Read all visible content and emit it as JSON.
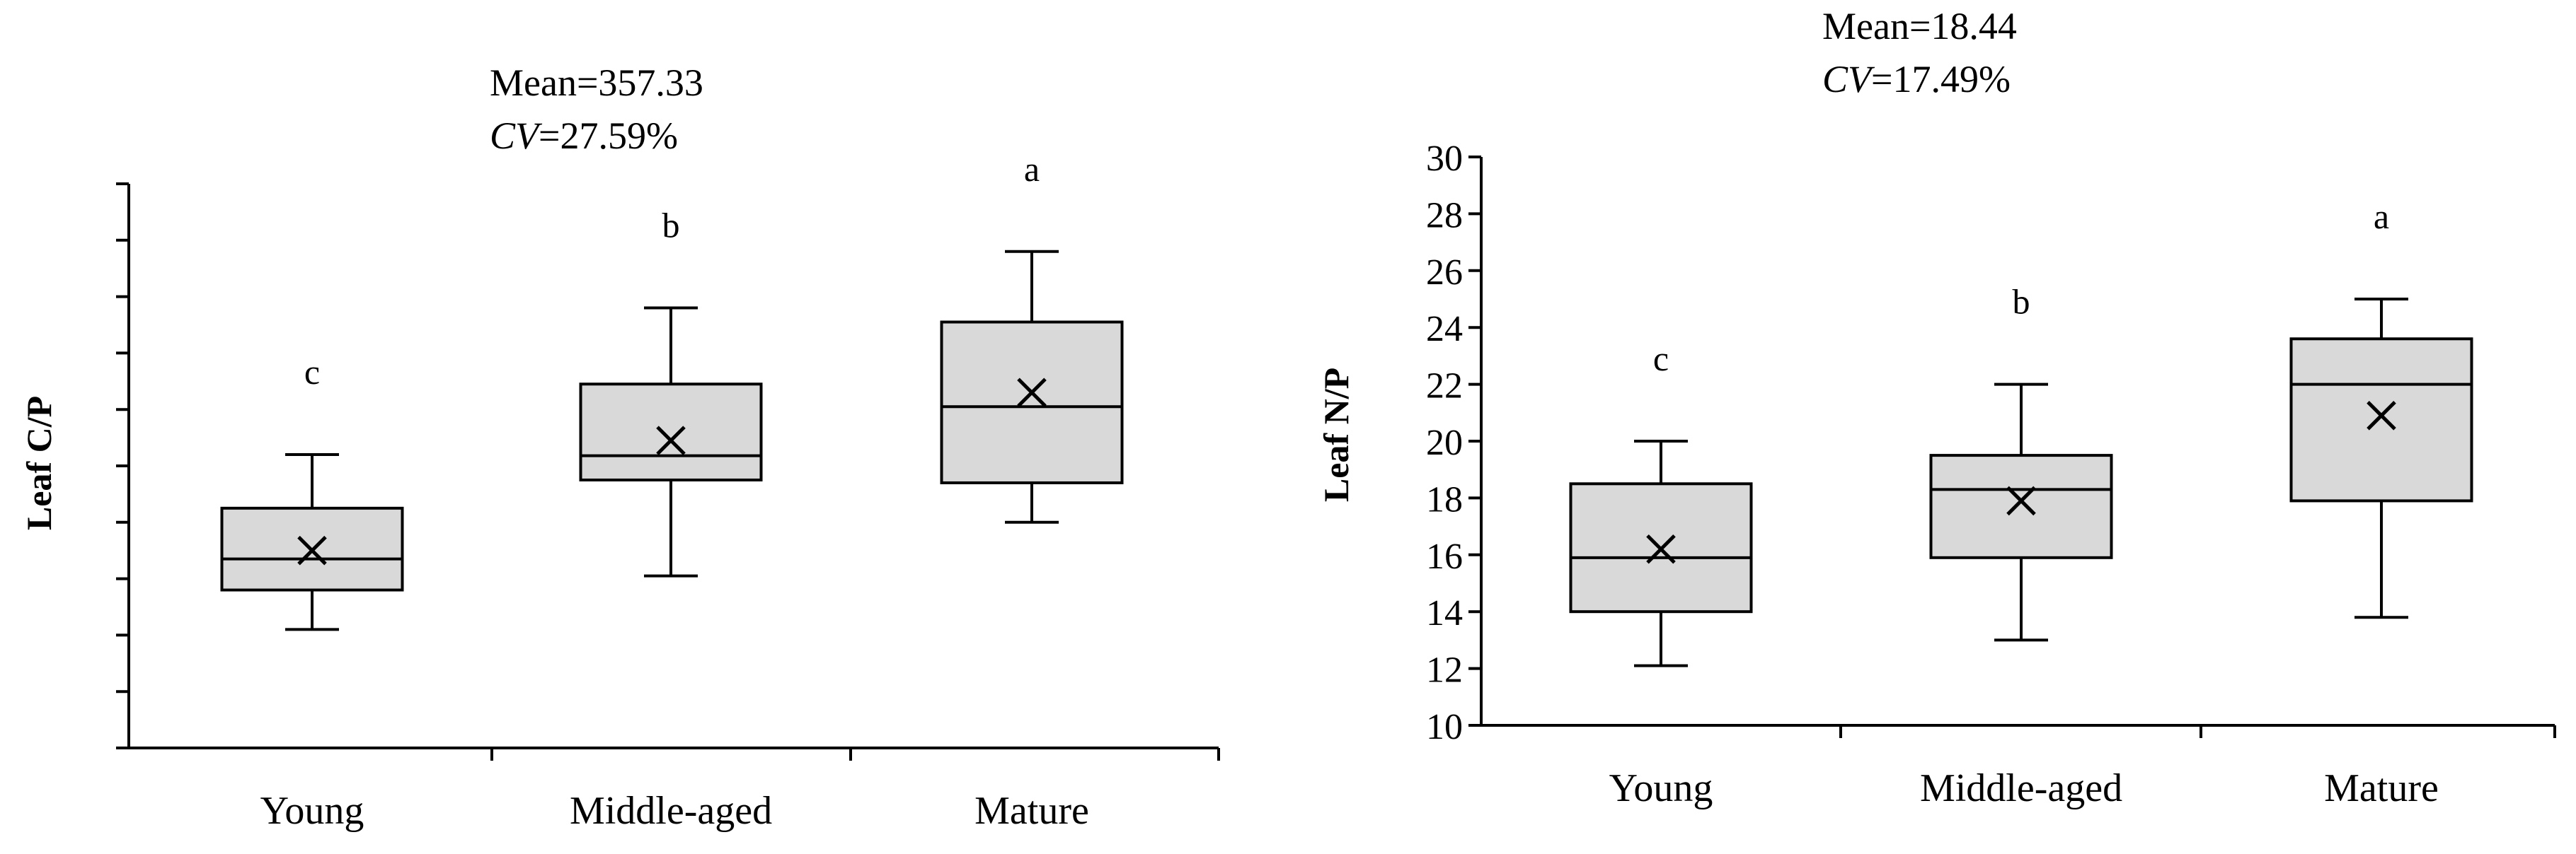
{
  "chart_data": [
    {
      "type": "box",
      "ylabel": "Leaf C/P",
      "y_tick_labels_shown": false,
      "ylim": [
        0,
        1000
      ],
      "annotation": {
        "mean_text": "Mean=357.33",
        "cv_label": "CV",
        "cv_value": "=27.59%"
      },
      "categories": [
        "Young",
        "Middle-aged",
        "Mature"
      ],
      "boxes": [
        {
          "category": "Young",
          "min": 210,
          "q1": 280,
          "median": 335,
          "q3": 425,
          "max": 520,
          "mean": 350,
          "letter": "c"
        },
        {
          "category": "Middle-aged",
          "min": 305,
          "q1": 475,
          "median": 518,
          "q3": 645,
          "max": 780,
          "mean": 545,
          "letter": "b"
        },
        {
          "category": "Mature",
          "min": 400,
          "q1": 470,
          "median": 605,
          "q3": 755,
          "max": 880,
          "mean": 630,
          "letter": "a"
        }
      ],
      "box_color": "#d9d9d9"
    },
    {
      "type": "box",
      "ylabel": "Leaf N/P",
      "ylim": [
        10,
        30
      ],
      "yticks": [
        10,
        12,
        14,
        16,
        18,
        20,
        22,
        24,
        26,
        28,
        30
      ],
      "annotation": {
        "mean_text": "Mean=18.44",
        "cv_label": "CV",
        "cv_value": "=17.49%"
      },
      "categories": [
        "Young",
        "Middle-aged",
        "Mature"
      ],
      "boxes": [
        {
          "category": "Young",
          "min": 12.1,
          "q1": 14.0,
          "median": 15.9,
          "q3": 18.5,
          "max": 20.0,
          "mean": 16.2,
          "letter": "c"
        },
        {
          "category": "Middle-aged",
          "min": 13.0,
          "q1": 15.9,
          "median": 18.3,
          "q3": 19.5,
          "max": 22.0,
          "mean": 17.9,
          "letter": "b"
        },
        {
          "category": "Mature",
          "min": 13.8,
          "q1": 17.9,
          "median": 22.0,
          "q3": 23.6,
          "max": 25.0,
          "mean": 20.9,
          "letter": "a"
        }
      ],
      "box_color": "#d9d9d9"
    }
  ]
}
